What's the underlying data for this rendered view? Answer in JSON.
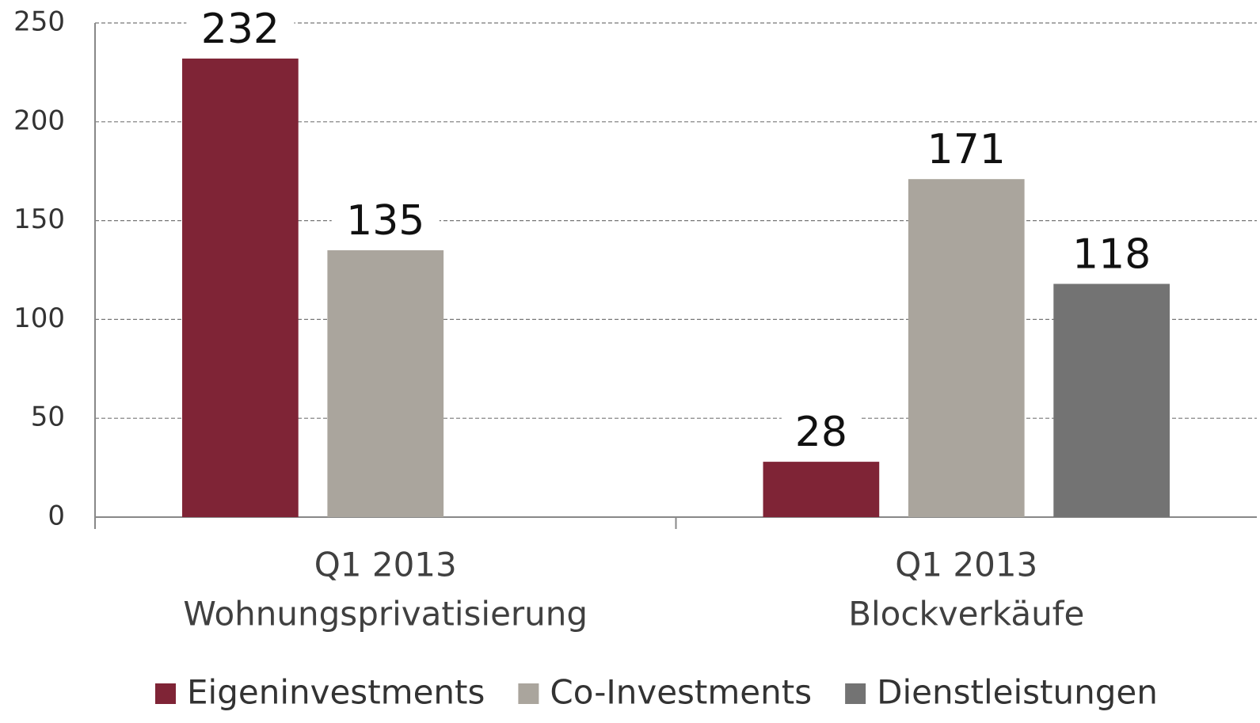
{
  "chart_data": {
    "type": "bar",
    "categories": [
      [
        "Q1 2013",
        "Wohnungsprivatisierung"
      ],
      [
        "Q1 2013",
        "Blockverkäufe"
      ]
    ],
    "series": [
      {
        "name": "Eigeninvestments",
        "color": "#7f2436",
        "values": [
          232,
          28
        ]
      },
      {
        "name": "Co-Investments",
        "color": "#aaa59d",
        "values": [
          135,
          171
        ]
      },
      {
        "name": "Dienstleistungen",
        "color": "#737373",
        "values": [
          null,
          118
        ]
      }
    ],
    "ylim": [
      0,
      250
    ],
    "yticks": [
      0,
      50,
      100,
      150,
      200,
      250
    ],
    "grid": true,
    "legend": "bottom"
  }
}
